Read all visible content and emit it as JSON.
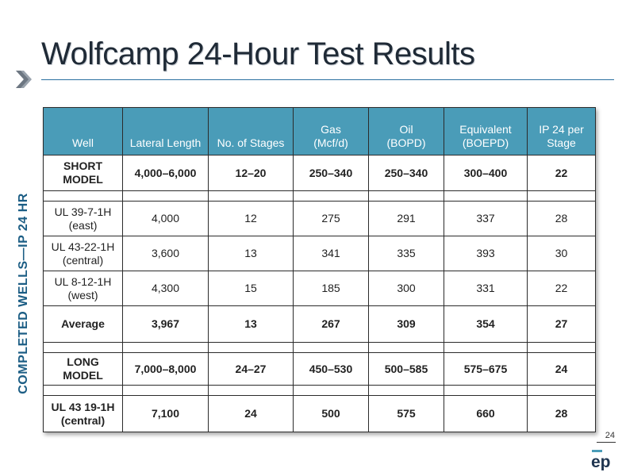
{
  "title": "Wolfcamp 24-Hour Test Results",
  "side_label": "COMPLETED WELLS—IP 24 HR",
  "page_number": "24",
  "logo_text": "ep",
  "colors": {
    "header_fill": "#4a9cb8",
    "model_text": "#3a93b5",
    "side_label": "#1b5d84",
    "title_rule": "#2a6fa0"
  },
  "table": {
    "headers": [
      "Well",
      "Lateral Length",
      "No. of Stages",
      "Gas\n(Mcf/d)",
      "Oil\n(BOPD)",
      "Equivalent\n(BOEPD)",
      "IP 24 per\nStage"
    ],
    "short_model": [
      "SHORT\nMODEL",
      "4,000–6,000",
      "12–20",
      "250–340",
      "250–340",
      "300–400",
      "22"
    ],
    "wells": [
      [
        "UL 39-7-1H\n(east)",
        "4,000",
        "12",
        "275",
        "291",
        "337",
        "28"
      ],
      [
        "UL 43-22-1H\n(central)",
        "3,600",
        "13",
        "341",
        "335",
        "393",
        "30"
      ],
      [
        "UL 8-12-1H\n(west)",
        "4,300",
        "15",
        "185",
        "300",
        "331",
        "22"
      ]
    ],
    "average": [
      "Average",
      "3,967",
      "13",
      "267",
      "309",
      "354",
      "27"
    ],
    "long_model": [
      "LONG\nMODEL",
      "7,000–8,000",
      "24–27",
      "450–530",
      "500–585",
      "575–675",
      "24"
    ],
    "ul43_19": [
      "UL 43 19-1H\n(central)",
      "7,100",
      "24",
      "500",
      "575",
      "660",
      "28"
    ]
  }
}
